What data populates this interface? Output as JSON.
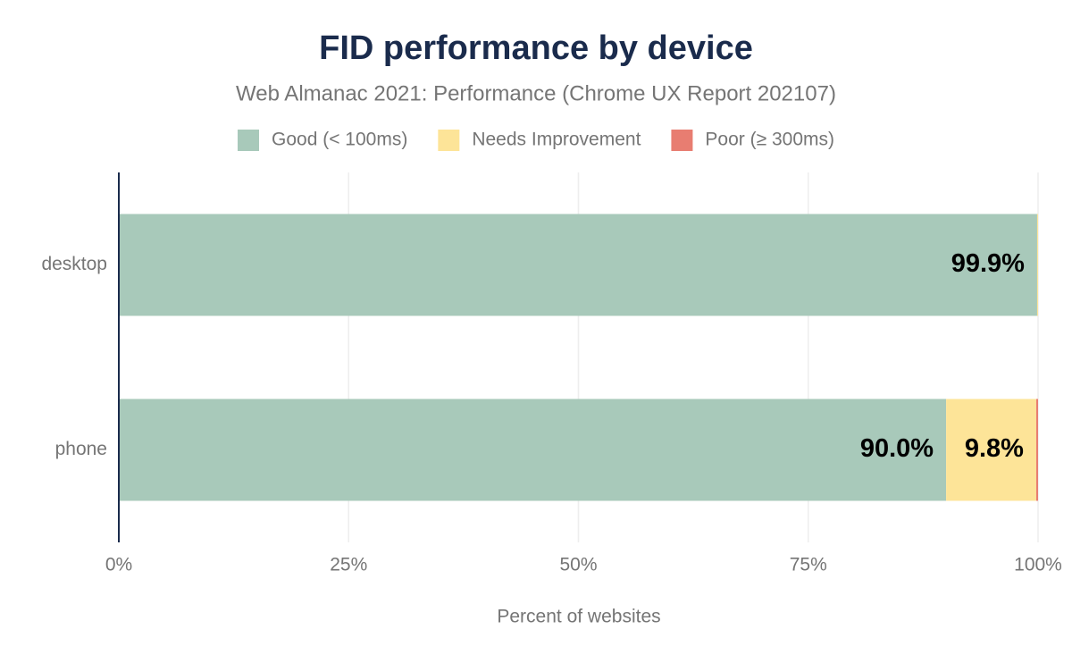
{
  "chart_data": {
    "type": "stacked_bar_horizontal",
    "title": "FID performance by device",
    "subtitle": "Web Almanac 2021: Performance (Chrome UX Report 202107)",
    "x_label": "Percent of websites",
    "categories": [
      "desktop",
      "phone"
    ],
    "series": [
      {
        "name": "Good (< 100ms)",
        "color": "#a8c9ba",
        "values": [
          99.9,
          90.0
        ],
        "value_labels": [
          "99.9%",
          "90.0%"
        ]
      },
      {
        "name": "Needs Improvement",
        "color": "#fde498",
        "values": [
          0.1,
          9.8
        ],
        "value_labels": [
          null,
          "9.8%"
        ]
      },
      {
        "name": "Poor (≥ 300ms)",
        "color": "#e87d71",
        "values": [
          0.0,
          0.2
        ],
        "value_labels": [
          null,
          null
        ]
      }
    ],
    "xlim": [
      0,
      100
    ],
    "xticks": [
      {
        "value": 0,
        "label": "0%"
      },
      {
        "value": 25,
        "label": "25%"
      },
      {
        "value": 50,
        "label": "50%"
      },
      {
        "value": 75,
        "label": "75%"
      },
      {
        "value": 100,
        "label": "100%"
      }
    ],
    "grid": true
  }
}
